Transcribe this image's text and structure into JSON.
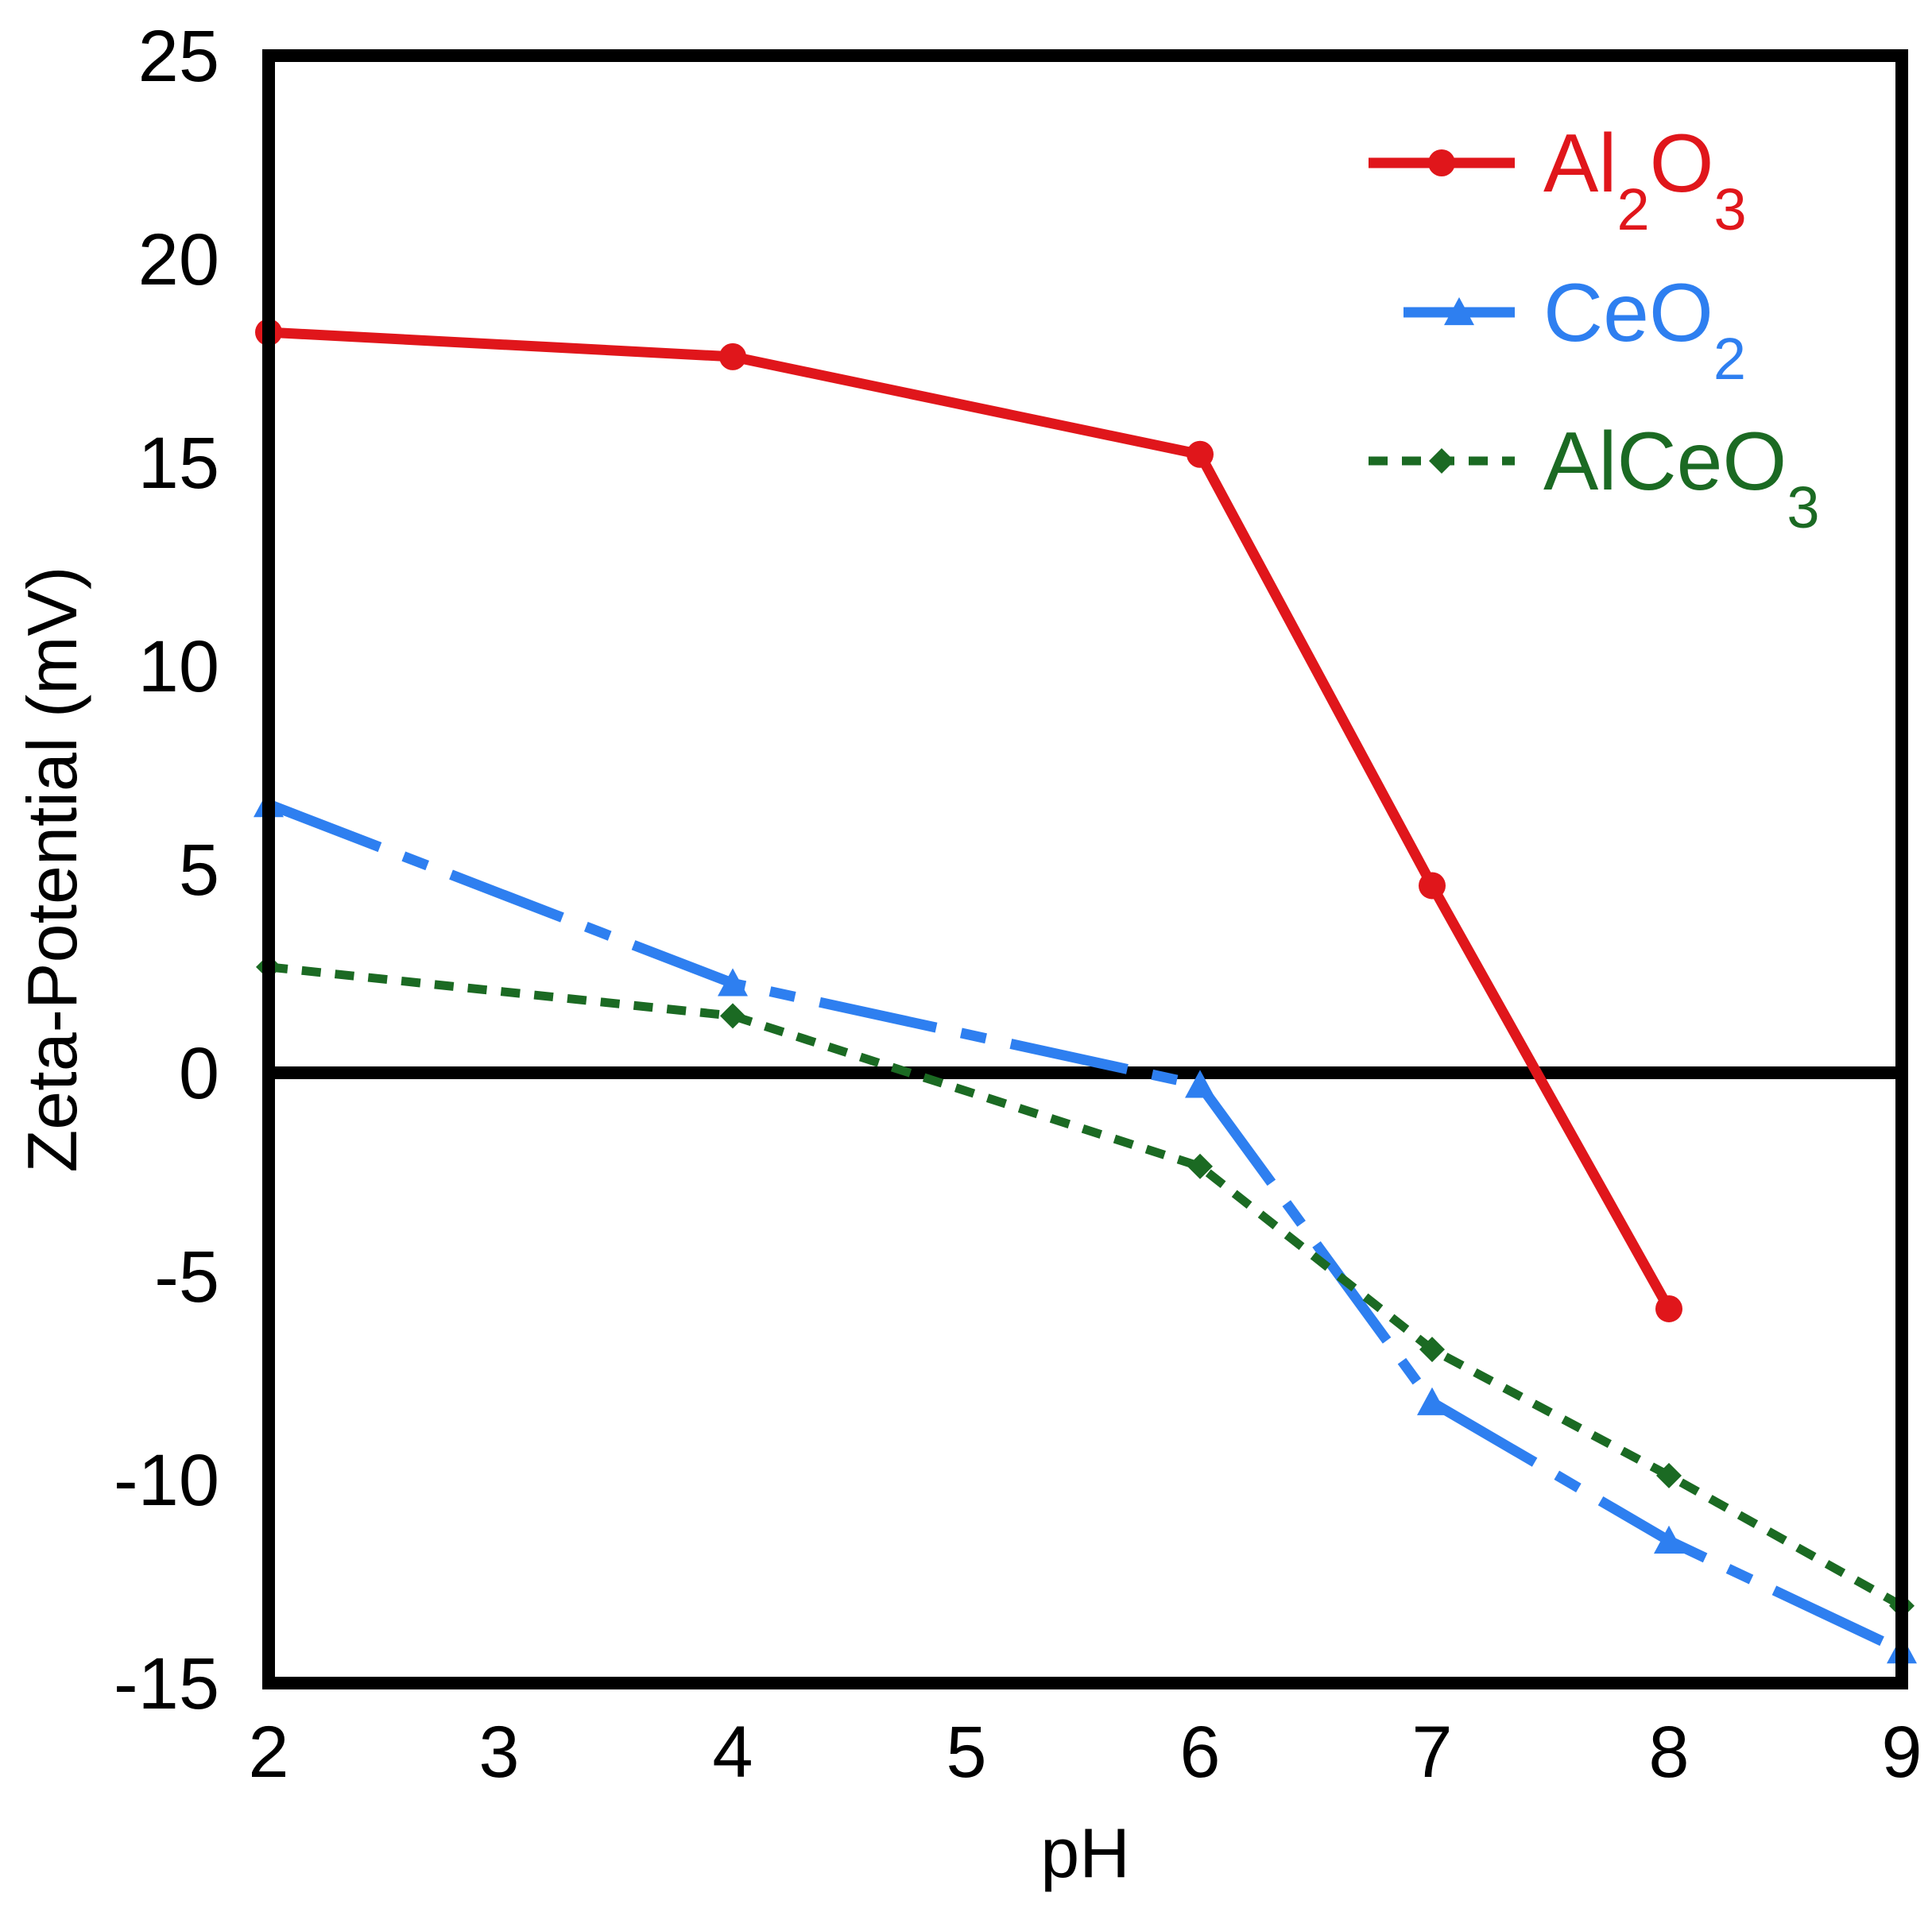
{
  "chart_data": {
    "type": "line",
    "title": "",
    "xlabel": "pH",
    "ylabel": "Zeta-Potential (mV)",
    "xlim": [
      2,
      9
    ],
    "ylim": [
      -15,
      25
    ],
    "x_tick_values": [
      2,
      3,
      4,
      5,
      6,
      7,
      8,
      9
    ],
    "x_tick_labels": [
      "2",
      "3",
      "4",
      "5",
      "6",
      "7",
      "8",
      "9"
    ],
    "y_tick_values": [
      25,
      20,
      15,
      10,
      5,
      0,
      -5,
      -10,
      -15
    ],
    "y_tick_labels": [
      "25",
      "20",
      "15",
      "10",
      "5",
      "0",
      "-5",
      "-10",
      "-15"
    ],
    "zero_line": true,
    "grid": false,
    "legend_position": "top-right",
    "series": [
      {
        "name": "Al2O3",
        "legend_base": "Al",
        "legend_sub1": "2",
        "legend_mid": "O",
        "legend_sub2": "3",
        "color": "#e0161b",
        "line_style": "solid",
        "marker": "circle",
        "points": [
          {
            "x": 2,
            "y": 18.2
          },
          {
            "x": 4,
            "y": 17.6
          },
          {
            "x": 6,
            "y": 15.2
          },
          {
            "x": 7,
            "y": 4.6
          },
          {
            "x": 8,
            "y": -5.8
          }
        ]
      },
      {
        "name": "CeO2",
        "legend_base": "CeO",
        "legend_sub1": "2",
        "legend_mid": "",
        "legend_sub2": "",
        "color": "#2e7ff0",
        "line_style": "long-dash",
        "marker": "triangle",
        "points": [
          {
            "x": 2,
            "y": 6.6
          },
          {
            "x": 4,
            "y": 2.2
          },
          {
            "x": 6,
            "y": -0.3
          },
          {
            "x": 7,
            "y": -8.1
          },
          {
            "x": 8,
            "y": -11.5
          },
          {
            "x": 9,
            "y": -14.2
          }
        ]
      },
      {
        "name": "AlCeO3",
        "legend_base": "AlCeO",
        "legend_sub1": "3",
        "legend_mid": "",
        "legend_sub2": "",
        "color": "#1b6a23",
        "line_style": "short-dash",
        "marker": "diamond",
        "points": [
          {
            "x": 2,
            "y": 2.6
          },
          {
            "x": 4,
            "y": 1.4
          },
          {
            "x": 6,
            "y": -2.3
          },
          {
            "x": 7,
            "y": -6.8
          },
          {
            "x": 8,
            "y": -9.9
          },
          {
            "x": 9,
            "y": -13.1
          }
        ]
      }
    ]
  }
}
